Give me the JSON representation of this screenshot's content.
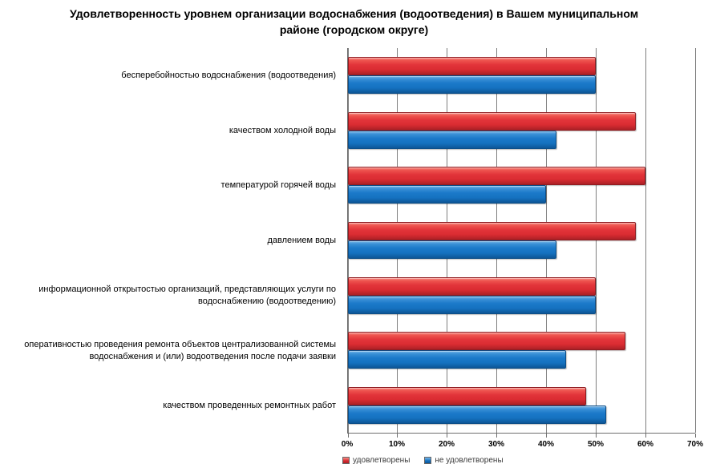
{
  "title": "Удовлетворенность уровнем организации водоснабжения (водоотведения) в Вашем муниципальном районе (городском округе)",
  "chart_data": {
    "type": "bar",
    "orientation": "horizontal",
    "title": "Удовлетворенность уровнем организации водоснабжения (водоотведения) в Вашем муниципальном районе (городском округе)",
    "categories": [
      "бесперебойностью водоснабжения (водоотведения)",
      "качеством холодной воды",
      "температурой горячей воды",
      "давлением воды",
      "информационной открытостью организаций, представляющих услуги по водоснабжению (водоотведению)",
      "оперативностью проведения ремонта объектов централизованной системы водоснабжения и (или) водоотведения после подачи заявки",
      "качеством проведенных ремонтных работ"
    ],
    "series": [
      {
        "name": "удовлетворены",
        "color_main": "#DA2C32",
        "color_gradient_top": "#F7938B",
        "color_gradient_bottom": "#AB2026",
        "values": [
          50,
          58,
          60,
          58,
          50,
          56,
          48
        ]
      },
      {
        "name": "не удовлетворены",
        "color_main": "#1572C0",
        "color_gradient_top": "#7CB9EA",
        "color_gradient_bottom": "#0D5696",
        "values": [
          50,
          42,
          40,
          42,
          50,
          44,
          52
        ]
      }
    ],
    "xlim": [
      0,
      70
    ],
    "x_ticks": [
      "0%",
      "10%",
      "20%",
      "30%",
      "40%",
      "50%",
      "60%",
      "70%"
    ],
    "x_tick_values": [
      0,
      10,
      20,
      30,
      40,
      50,
      60,
      70
    ],
    "grid": true,
    "gridline_color": "#7F7F7F",
    "legend_position": "bottom-left"
  }
}
